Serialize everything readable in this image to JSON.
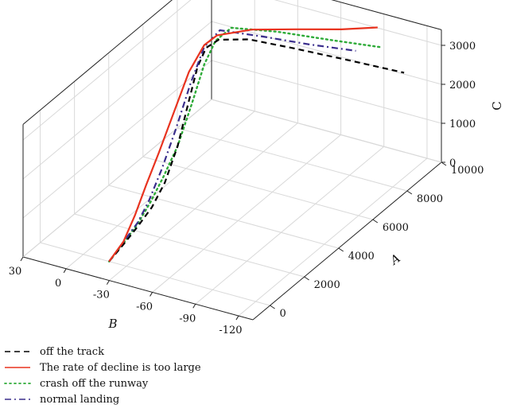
{
  "chart_data": {
    "type": "line3d",
    "title": "",
    "axes": {
      "A": {
        "label": "A",
        "range": [
          -1000,
          10000
        ],
        "ticks": [
          "0",
          "2000",
          "4000",
          "6000",
          "8000",
          "10000"
        ]
      },
      "B": {
        "label": "B",
        "range": [
          30,
          -130
        ],
        "ticks": [
          "30",
          "0",
          "-30",
          "-60",
          "-90",
          "-120"
        ]
      },
      "C": {
        "label": "C",
        "range": [
          0,
          3400
        ],
        "ticks": [
          "0",
          "1000",
          "2000",
          "3000"
        ]
      }
    },
    "grid": true,
    "legend": {
      "position": "bottom-left"
    },
    "series": [
      {
        "name": "off the track",
        "color": "#000000",
        "dash": "dashed",
        "points": [
          {
            "a": 0,
            "b": -18,
            "c": 0
          },
          {
            "a": 1000,
            "b": -16,
            "c": 50
          },
          {
            "a": 2000,
            "b": -14,
            "c": 120
          },
          {
            "a": 3000,
            "b": -12,
            "c": 230
          },
          {
            "a": 4000,
            "b": -9,
            "c": 460
          },
          {
            "a": 5000,
            "b": -6,
            "c": 1000
          },
          {
            "a": 5800,
            "b": -4,
            "c": 1800
          },
          {
            "a": 6500,
            "b": -2,
            "c": 2450
          },
          {
            "a": 7000,
            "b": -2,
            "c": 2750
          },
          {
            "a": 7400,
            "b": -6,
            "c": 2850
          },
          {
            "a": 8000,
            "b": -20,
            "c": 2780
          },
          {
            "a": 8500,
            "b": -45,
            "c": 2620
          },
          {
            "a": 9000,
            "b": -75,
            "c": 2450
          },
          {
            "a": 9500,
            "b": -110,
            "c": 2280
          }
        ]
      },
      {
        "name": "The rate of decline is too large",
        "color": "#e8331f",
        "dash": "solid",
        "points": [
          {
            "a": 0,
            "b": -18,
            "c": 0
          },
          {
            "a": 1000,
            "b": -16,
            "c": 120
          },
          {
            "a": 2000,
            "b": -12,
            "c": 380
          },
          {
            "a": 3000,
            "b": -8,
            "c": 760
          },
          {
            "a": 4000,
            "b": -5,
            "c": 1200
          },
          {
            "a": 5000,
            "b": -3,
            "c": 1800
          },
          {
            "a": 6000,
            "b": -2,
            "c": 2500
          },
          {
            "a": 6800,
            "b": -3,
            "c": 2900
          },
          {
            "a": 7300,
            "b": -6,
            "c": 3000
          },
          {
            "a": 8000,
            "b": -22,
            "c": 3050
          },
          {
            "a": 8600,
            "b": -45,
            "c": 3070
          },
          {
            "a": 9200,
            "b": -70,
            "c": 3100
          },
          {
            "a": 9800,
            "b": -88,
            "c": 3110
          }
        ]
      },
      {
        "name": "crash off the runway",
        "color": "#2eab38",
        "dash": "dotted",
        "points": [
          {
            "a": 0,
            "b": -18,
            "c": 0
          },
          {
            "a": 1000,
            "b": -16,
            "c": 80
          },
          {
            "a": 2000,
            "b": -14,
            "c": 190
          },
          {
            "a": 3000,
            "b": -11,
            "c": 350
          },
          {
            "a": 4000,
            "b": -8,
            "c": 600
          },
          {
            "a": 5000,
            "b": -6,
            "c": 1000
          },
          {
            "a": 6000,
            "b": -4,
            "c": 1700
          },
          {
            "a": 6800,
            "b": -3,
            "c": 2400
          },
          {
            "a": 7300,
            "b": -5,
            "c": 2850
          },
          {
            "a": 7800,
            "b": -10,
            "c": 3050
          },
          {
            "a": 8400,
            "b": -35,
            "c": 2980
          },
          {
            "a": 9000,
            "b": -65,
            "c": 2850
          },
          {
            "a": 9600,
            "b": -92,
            "c": 2720
          }
        ]
      },
      {
        "name": "normal landing",
        "color": "#3a2e8c",
        "dash": "dashdot",
        "points": [
          {
            "a": 0,
            "b": -18,
            "c": 0
          },
          {
            "a": 1000,
            "b": -16,
            "c": 110
          },
          {
            "a": 2000,
            "b": -14,
            "c": 220
          },
          {
            "a": 3000,
            "b": -10,
            "c": 380
          },
          {
            "a": 4000,
            "b": -7,
            "c": 800
          },
          {
            "a": 5000,
            "b": -5,
            "c": 1450
          },
          {
            "a": 6000,
            "b": -3,
            "c": 2200
          },
          {
            "a": 6800,
            "b": -3,
            "c": 2850
          },
          {
            "a": 7300,
            "b": -8,
            "c": 3150
          },
          {
            "a": 8000,
            "b": -30,
            "c": 2950
          },
          {
            "a": 8600,
            "b": -55,
            "c": 2780
          },
          {
            "a": 9200,
            "b": -80,
            "c": 2650
          }
        ]
      }
    ]
  }
}
